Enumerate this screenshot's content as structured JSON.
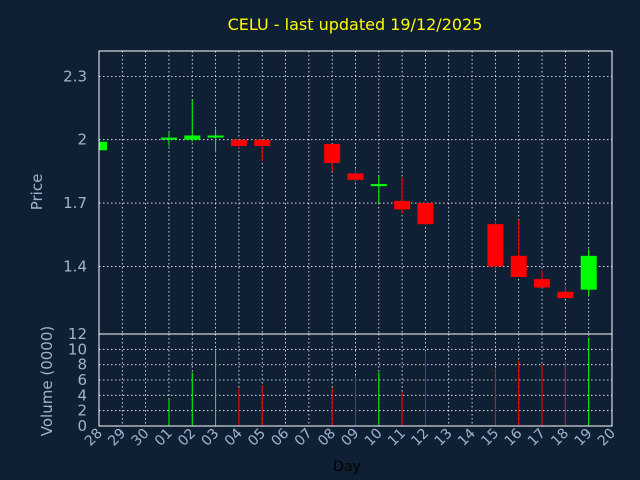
{
  "chart_data": {
    "type": "candlestick",
    "title": "CELU - last updated 19/12/2025",
    "xlabel": "Day",
    "price_ylabel": "Price",
    "volume_ylabel": "Volume (0000)",
    "x_ticks": [
      "28",
      "29",
      "30",
      "01",
      "02",
      "03",
      "04",
      "05",
      "06",
      "07",
      "08",
      "09",
      "10",
      "11",
      "12",
      "13",
      "14",
      "15",
      "16",
      "17",
      "18",
      "19",
      "20"
    ],
    "price_ticks": [
      "1.4",
      "1.7",
      "2",
      "2.3"
    ],
    "price_tick_values": [
      1.4,
      1.7,
      2.0,
      2.3
    ],
    "price_ylim": [
      1.08,
      2.42
    ],
    "volume_ticks": [
      "0",
      "2",
      "4",
      "6",
      "8",
      "10",
      "12"
    ],
    "volume_tick_values": [
      0,
      2,
      4,
      6,
      8,
      10,
      12
    ],
    "volume_ylim": [
      0,
      12
    ],
    "colors": {
      "up": "#00ff00",
      "down": "#ff0000"
    },
    "candles": [
      {
        "day": "28",
        "open": 1.95,
        "high": 1.99,
        "low": 1.95,
        "close": 1.99,
        "volume": 0.3
      },
      {
        "day": "01",
        "open": 2.0,
        "high": 2.04,
        "low": 1.97,
        "close": 2.01,
        "volume": 3.5
      },
      {
        "day": "02",
        "open": 2.0,
        "high": 2.19,
        "low": 1.99,
        "close": 2.02,
        "volume": 7.0
      },
      {
        "day": "03",
        "open": 2.01,
        "high": 2.05,
        "low": 1.94,
        "close": 2.02,
        "volume": 10.0
      },
      {
        "day": "04",
        "open": 2.0,
        "high": 2.0,
        "low": 1.96,
        "close": 1.97,
        "volume": 5.0
      },
      {
        "day": "05",
        "open": 2.0,
        "high": 2.0,
        "low": 1.9,
        "close": 1.97,
        "volume": 5.3
      },
      {
        "day": "08",
        "open": 1.98,
        "high": 1.98,
        "low": 1.85,
        "close": 1.89,
        "volume": 5.0
      },
      {
        "day": "09",
        "open": 1.84,
        "high": 1.86,
        "low": 1.8,
        "close": 1.81,
        "volume": 6.5
      },
      {
        "day": "10",
        "open": 1.78,
        "high": 1.83,
        "low": 1.7,
        "close": 1.79,
        "volume": 7.0
      },
      {
        "day": "11",
        "open": 1.71,
        "high": 1.82,
        "low": 1.65,
        "close": 1.67,
        "volume": 4.5
      },
      {
        "day": "12",
        "open": 1.7,
        "high": 1.7,
        "low": 1.6,
        "close": 1.6,
        "volume": 9.8
      },
      {
        "day": "15",
        "open": 1.6,
        "high": 1.62,
        "low": 1.38,
        "close": 1.4,
        "volume": 7.5
      },
      {
        "day": "16",
        "open": 1.45,
        "high": 1.62,
        "low": 1.35,
        "close": 1.35,
        "volume": 8.5
      },
      {
        "day": "17",
        "open": 1.34,
        "high": 1.38,
        "low": 1.3,
        "close": 1.3,
        "volume": 8.0
      },
      {
        "day": "18",
        "open": 1.28,
        "high": 1.31,
        "low": 1.25,
        "close": 1.25,
        "volume": 8.5
      },
      {
        "day": "19",
        "open": 1.29,
        "high": 1.48,
        "low": 1.26,
        "close": 1.45,
        "volume": 11.5
      }
    ]
  }
}
